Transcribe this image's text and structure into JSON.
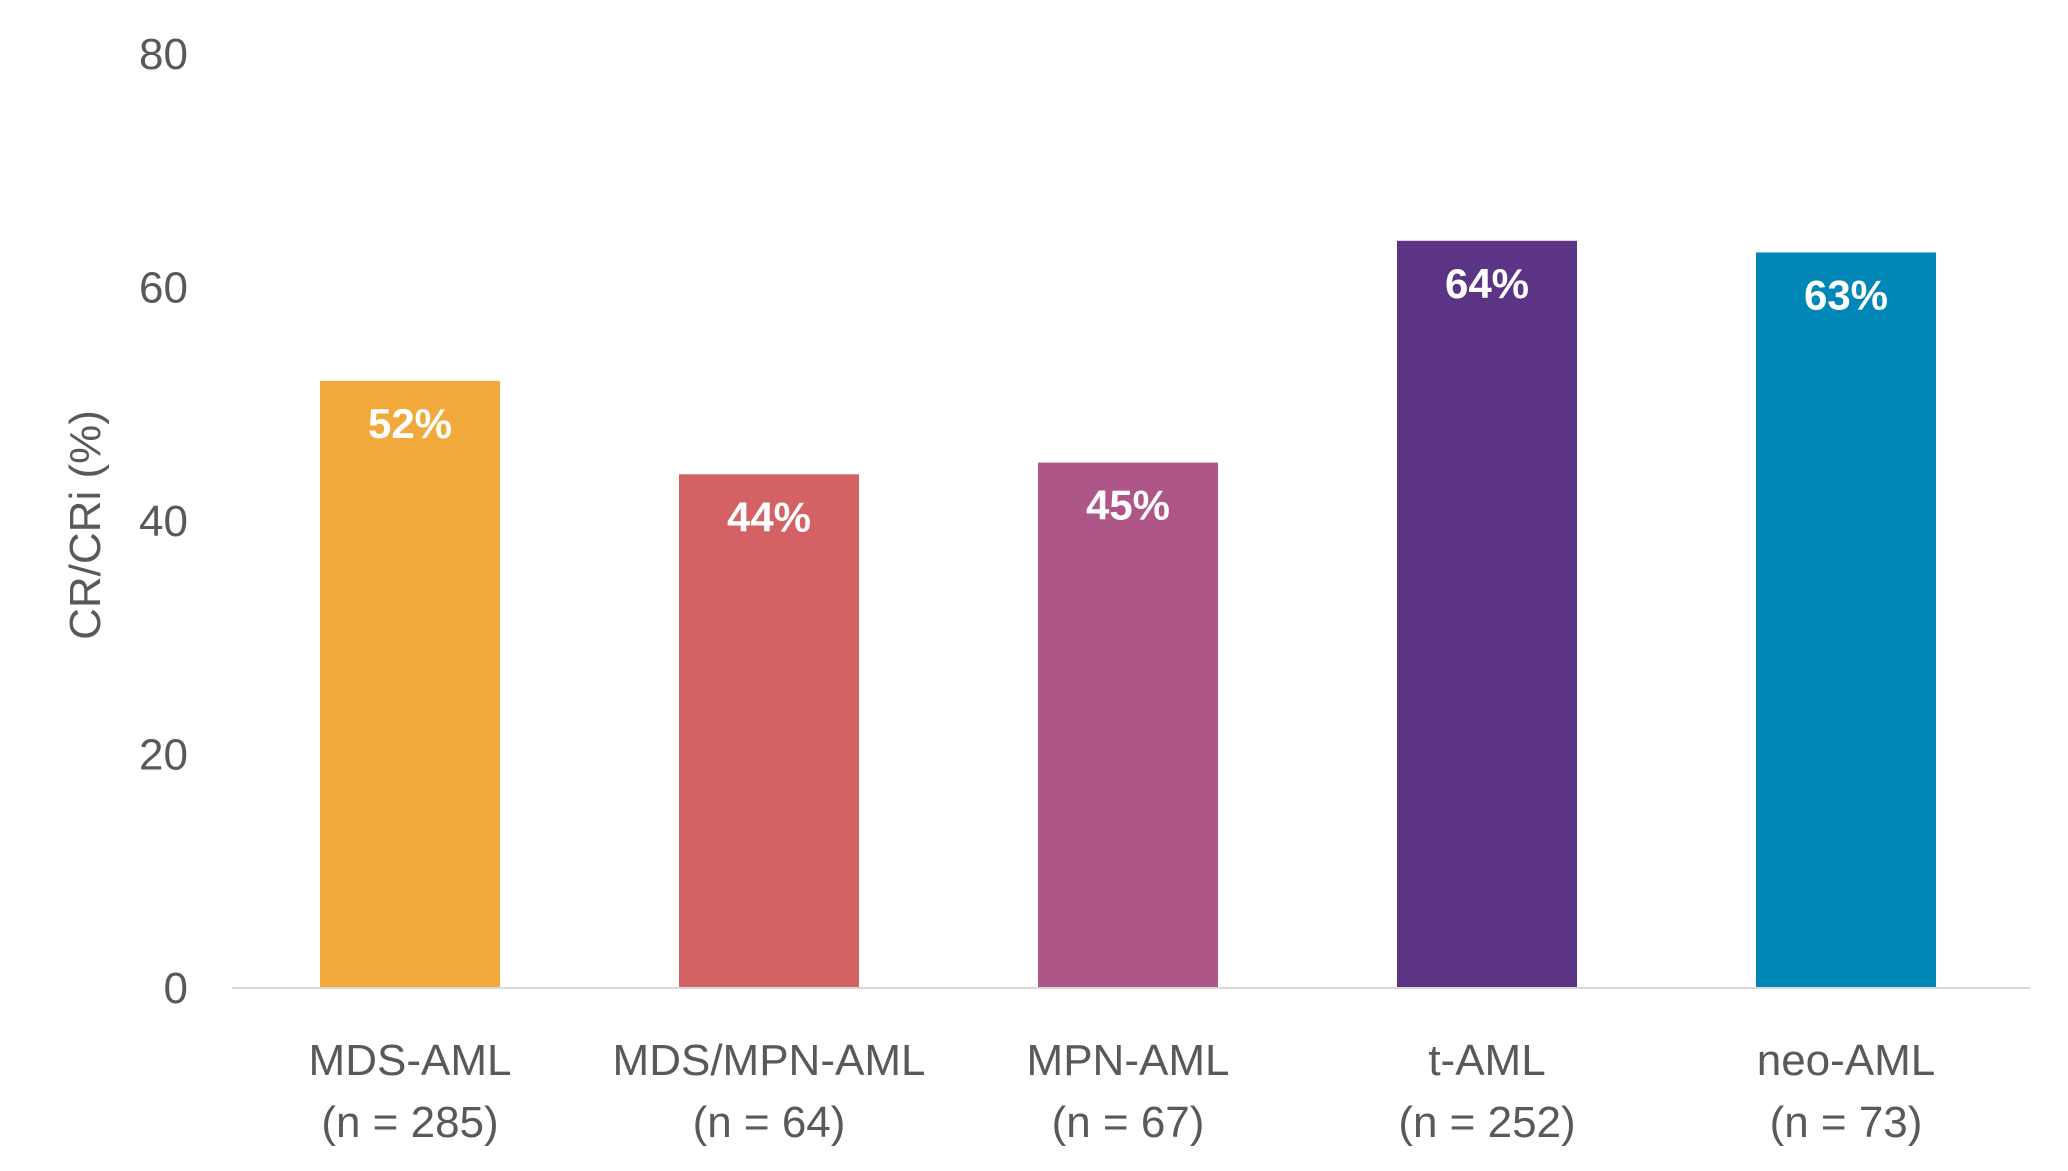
{
  "chart_data": {
    "type": "bar",
    "categories": [
      {
        "name": "MDS-AML",
        "n": "(n = 285)"
      },
      {
        "name": "MDS/MPN-AML",
        "n": "(n = 64)"
      },
      {
        "name": "MPN-AML",
        "n": "(n = 67)"
      },
      {
        "name": "t-AML",
        "n": "(n = 252)"
      },
      {
        "name": "neo-AML",
        "n": "(n = 73)"
      }
    ],
    "values": [
      52,
      44,
      45,
      64,
      63
    ],
    "data_labels": [
      "52%",
      "44%",
      "45%",
      "64%",
      "63%"
    ],
    "colors": [
      "#F2A93B",
      "#D46163",
      "#AF5688",
      "#5C3486",
      "#0087B8"
    ],
    "ylabel": "CR/CRi (%)",
    "xlabel": "",
    "title": "",
    "ylim": [
      0,
      80
    ],
    "yticks": [
      "0",
      "20",
      "40",
      "60",
      "80"
    ],
    "grid": false,
    "axis_color": "#D9D9D9",
    "text_color": "#595959"
  }
}
